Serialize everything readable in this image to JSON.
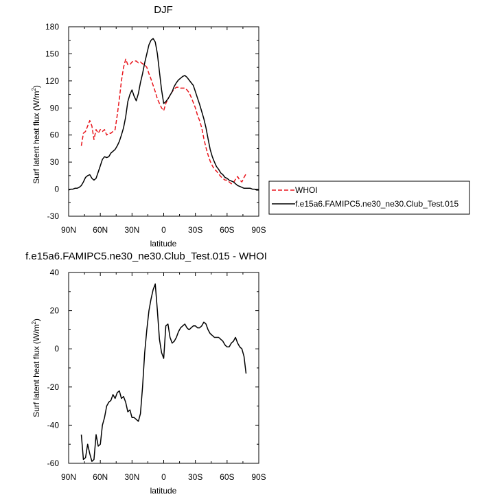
{
  "chart_data": [
    {
      "type": "line",
      "title": "DJF",
      "xlabel": "latitude",
      "ylabel": "Surf latent heat flux (W/m",
      "ylabel_sup": "2",
      "ylabel_close": ")",
      "xlim": [
        90,
        -90
      ],
      "ylim": [
        -30,
        180
      ],
      "x_ticks": [
        90,
        60,
        30,
        0,
        -30,
        -60,
        -90
      ],
      "x_tick_labels": [
        "90N",
        "60N",
        "30N",
        "0",
        "30S",
        "60S",
        "90S"
      ],
      "y_ticks": [
        -30,
        0,
        30,
        60,
        90,
        120,
        150,
        180
      ],
      "y_tick_labels": [
        "-30",
        "0",
        "30",
        "60",
        "90",
        "120",
        "150",
        "180"
      ],
      "legend_position": "right",
      "series": [
        {
          "name": "WHOI",
          "color": "#e8141b",
          "dash": true,
          "x": [
            78,
            76,
            74,
            72,
            70,
            68,
            66,
            64,
            62,
            60,
            58,
            56,
            54,
            52,
            50,
            48,
            46,
            44,
            42,
            40,
            38,
            36,
            34,
            32,
            30,
            28,
            26,
            24,
            22,
            20,
            18,
            16,
            14,
            12,
            10,
            8,
            6,
            4,
            2,
            0,
            -2,
            -4,
            -6,
            -8,
            -10,
            -12,
            -14,
            -16,
            -18,
            -20,
            -22,
            -24,
            -26,
            -28,
            -30,
            -32,
            -34,
            -36,
            -38,
            -40,
            -42,
            -44,
            -46,
            -48,
            -50,
            -52,
            -54,
            -56,
            -58,
            -60,
            -62,
            -64,
            -66,
            -68,
            -70,
            -72,
            -74,
            -76,
            -78
          ],
          "y": [
            48,
            62,
            64,
            70,
            76,
            70,
            55,
            66,
            62,
            66,
            64,
            66,
            60,
            62,
            62,
            64,
            66,
            82,
            100,
            120,
            135,
            144,
            138,
            138,
            141,
            142,
            142,
            140,
            141,
            139,
            138,
            135,
            128,
            122,
            115,
            108,
            100,
            95,
            90,
            87,
            95,
            100,
            104,
            108,
            111,
            113,
            113,
            112,
            112,
            112,
            110,
            107,
            102,
            96,
            90,
            82,
            76,
            68,
            56,
            46,
            38,
            31,
            26,
            22,
            20,
            17,
            14,
            12,
            10,
            10,
            8,
            6,
            7,
            11,
            14,
            10,
            8,
            13,
            17
          ]
        },
        {
          "name": "f.e15a6.FAMIPC5.ne30_ne30.Club_Test.015",
          "color": "#000000",
          "dash": false,
          "x": [
            90,
            88,
            86,
            84,
            82,
            80,
            78,
            76,
            74,
            72,
            70,
            68,
            66,
            64,
            62,
            60,
            58,
            56,
            54,
            52,
            50,
            48,
            46,
            44,
            42,
            40,
            38,
            36,
            34,
            32,
            30,
            28,
            26,
            24,
            22,
            20,
            18,
            16,
            14,
            12,
            10,
            8,
            6,
            4,
            2,
            0,
            -2,
            -4,
            -6,
            -8,
            -10,
            -12,
            -14,
            -16,
            -18,
            -20,
            -22,
            -24,
            -26,
            -28,
            -30,
            -32,
            -34,
            -36,
            -38,
            -40,
            -42,
            -44,
            -46,
            -48,
            -50,
            -52,
            -54,
            -56,
            -58,
            -60,
            -62,
            -64,
            -66,
            -68,
            -70,
            -72,
            -74,
            -76,
            -78,
            -80,
            -82,
            -84,
            -86,
            -88,
            -90
          ],
          "y": [
            -1,
            0,
            0,
            1,
            1,
            2,
            4,
            8,
            13,
            15,
            16,
            12,
            10,
            12,
            19,
            26,
            33,
            36,
            35,
            36,
            40,
            42,
            44,
            48,
            53,
            60,
            68,
            80,
            97,
            105,
            110,
            103,
            98,
            106,
            118,
            128,
            140,
            150,
            160,
            165,
            167,
            163,
            150,
            130,
            110,
            95,
            97,
            100,
            104,
            108,
            114,
            118,
            121,
            123,
            125,
            126,
            124,
            121,
            118,
            115,
            108,
            101,
            94,
            86,
            78,
            68,
            56,
            44,
            36,
            30,
            25,
            22,
            18,
            16,
            13,
            12,
            10,
            9,
            8,
            6,
            4,
            3,
            2,
            1,
            1,
            1,
            1,
            0,
            0,
            -1,
            -1
          ]
        }
      ]
    },
    {
      "type": "line",
      "title": "f.e15a6.FAMIPC5.ne30_ne30.Club_Test.015 - WHOI",
      "xlabel": "latitude",
      "ylabel": "Surf latent heat flux (W/m",
      "ylabel_sup": "2",
      "ylabel_close": ")",
      "xlim": [
        90,
        -90
      ],
      "ylim": [
        -60,
        40
      ],
      "x_ticks": [
        90,
        60,
        30,
        0,
        -30,
        -60,
        -90
      ],
      "x_tick_labels": [
        "90N",
        "60N",
        "30N",
        "0",
        "30S",
        "60S",
        "90S"
      ],
      "y_ticks": [
        -60,
        -40,
        -20,
        0,
        20,
        40
      ],
      "y_tick_labels": [
        "-60",
        "-40",
        "-20",
        "0",
        "20",
        "40"
      ],
      "series": [
        {
          "color": "#000000",
          "dash": false,
          "x": [
            78,
            76,
            74,
            72,
            70,
            68,
            66,
            64,
            62,
            60,
            58,
            56,
            54,
            52,
            50,
            48,
            46,
            44,
            42,
            40,
            38,
            36,
            34,
            32,
            30,
            28,
            26,
            24,
            22,
            20,
            18,
            16,
            14,
            12,
            10,
            8,
            6,
            4,
            2,
            0,
            -2,
            -4,
            -6,
            -8,
            -10,
            -12,
            -14,
            -16,
            -18,
            -20,
            -22,
            -24,
            -26,
            -28,
            -30,
            -32,
            -34,
            -36,
            -38,
            -40,
            -42,
            -44,
            -46,
            -48,
            -50,
            -52,
            -54,
            -56,
            -58,
            -60,
            -62,
            -64,
            -66,
            -68,
            -70,
            -72,
            -74,
            -76,
            -78
          ],
          "y": [
            -45,
            -58,
            -57,
            -50,
            -55,
            -59,
            -58,
            -45,
            -51,
            -50,
            -40,
            -36,
            -30,
            -28,
            -27,
            -24,
            -26,
            -23,
            -22,
            -26,
            -25,
            -28,
            -33,
            -32,
            -36,
            -36,
            -37,
            -38,
            -34,
            -20,
            -2,
            10,
            20,
            26,
            31,
            34,
            20,
            5,
            -2,
            -5,
            12,
            13,
            6,
            3,
            4,
            6,
            9,
            11,
            12,
            13,
            11,
            10,
            11,
            12,
            12,
            11,
            11,
            12,
            14,
            13,
            10,
            8,
            7,
            6,
            6,
            6,
            5,
            4,
            2,
            1,
            1,
            3,
            4,
            6,
            3,
            1,
            0,
            -4,
            -13
          ]
        }
      ]
    }
  ]
}
